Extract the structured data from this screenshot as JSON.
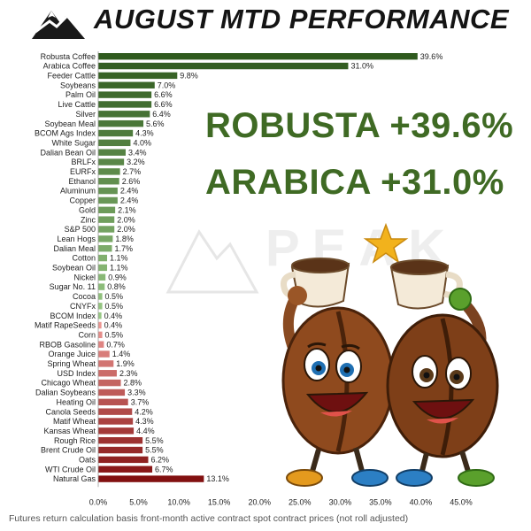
{
  "header": {
    "title": "AUGUST MTD PERFORMANCE"
  },
  "callouts": {
    "line1": "ROBUSTA +39.6%",
    "line2": "ARABICA +31.0%"
  },
  "watermark": {
    "text": "PEAK"
  },
  "footnote": "Futures return calculation basis front-month active contract spot contract prices (not roll adjusted)",
  "colors": {
    "positive_dark": "#2f5a1e",
    "positive_light": "#8fc27a",
    "negative_light": "#e98e8a",
    "negative_dark": "#8a1212",
    "callout": "#3f6a24"
  },
  "chart_data": {
    "type": "bar",
    "orientation": "horizontal",
    "title": "AUGUST MTD PERFORMANCE",
    "xlim": [
      0,
      45
    ],
    "x_ticks": [
      "0.0%",
      "5.0%",
      "10.0%",
      "15.0%",
      "20.0%",
      "25.0%",
      "30.0%",
      "35.0%",
      "40.0%",
      "45.0%"
    ],
    "grid": false,
    "bars": [
      {
        "label": "Robusta Coffee",
        "value": 39.6,
        "value_label": "39.6%",
        "sign": "positive"
      },
      {
        "label": "Arabica Coffee",
        "value": 31.0,
        "value_label": "31.0%",
        "sign": "positive"
      },
      {
        "label": "Feeder Cattle",
        "value": 9.8,
        "value_label": "9.8%",
        "sign": "positive"
      },
      {
        "label": "Soybeans",
        "value": 7.0,
        "value_label": "7.0%",
        "sign": "positive"
      },
      {
        "label": "Palm Oil",
        "value": 6.6,
        "value_label": "6.6%",
        "sign": "positive"
      },
      {
        "label": "Live Cattle",
        "value": 6.6,
        "value_label": "6.6%",
        "sign": "positive"
      },
      {
        "label": "Silver",
        "value": 6.4,
        "value_label": "6.4%",
        "sign": "positive"
      },
      {
        "label": "Soybean Meal",
        "value": 5.6,
        "value_label": "5.6%",
        "sign": "positive"
      },
      {
        "label": "BCOM Ags Index",
        "value": 4.3,
        "value_label": "4.3%",
        "sign": "positive"
      },
      {
        "label": "White Sugar",
        "value": 4.0,
        "value_label": "4.0%",
        "sign": "positive"
      },
      {
        "label": "Dalian Bean Oil",
        "value": 3.4,
        "value_label": "3.4%",
        "sign": "positive"
      },
      {
        "label": "BRLFx",
        "value": 3.2,
        "value_label": "3.2%",
        "sign": "positive"
      },
      {
        "label": "EURFx",
        "value": 2.7,
        "value_label": "2.7%",
        "sign": "positive"
      },
      {
        "label": "Ethanol",
        "value": 2.6,
        "value_label": "2.6%",
        "sign": "positive"
      },
      {
        "label": "Aluminum",
        "value": 2.4,
        "value_label": "2.4%",
        "sign": "positive"
      },
      {
        "label": "Copper",
        "value": 2.4,
        "value_label": "2.4%",
        "sign": "positive"
      },
      {
        "label": "Gold",
        "value": 2.1,
        "value_label": "2.1%",
        "sign": "positive"
      },
      {
        "label": "Zinc",
        "value": 2.0,
        "value_label": "2.0%",
        "sign": "positive"
      },
      {
        "label": "S&P 500",
        "value": 2.0,
        "value_label": "2.0%",
        "sign": "positive"
      },
      {
        "label": "Lean Hogs",
        "value": 1.8,
        "value_label": "1.8%",
        "sign": "positive"
      },
      {
        "label": "Dalian Meal",
        "value": 1.7,
        "value_label": "1.7%",
        "sign": "positive"
      },
      {
        "label": "Cotton",
        "value": 1.1,
        "value_label": "1.1%",
        "sign": "positive"
      },
      {
        "label": "Soybean Oil",
        "value": 1.1,
        "value_label": "1.1%",
        "sign": "positive"
      },
      {
        "label": "Nickel",
        "value": 0.9,
        "value_label": "0.9%",
        "sign": "positive"
      },
      {
        "label": "Sugar No. 11",
        "value": 0.8,
        "value_label": "0.8%",
        "sign": "positive"
      },
      {
        "label": "Cocoa",
        "value": 0.5,
        "value_label": "0.5%",
        "sign": "positive"
      },
      {
        "label": "CNYFx",
        "value": 0.5,
        "value_label": "0.5%",
        "sign": "positive"
      },
      {
        "label": "BCOM Index",
        "value": 0.4,
        "value_label": "0.4%",
        "sign": "positive"
      },
      {
        "label": "Matif RapeSeeds",
        "value": 0.4,
        "value_label": "0.4%",
        "sign": "negative"
      },
      {
        "label": "Corn",
        "value": 0.5,
        "value_label": "0.5%",
        "sign": "negative"
      },
      {
        "label": "RBOB Gasoline",
        "value": 0.7,
        "value_label": "0.7%",
        "sign": "negative"
      },
      {
        "label": "Orange Juice",
        "value": 1.4,
        "value_label": "1.4%",
        "sign": "negative"
      },
      {
        "label": "Spring Wheat",
        "value": 1.9,
        "value_label": "1.9%",
        "sign": "negative"
      },
      {
        "label": "USD Index",
        "value": 2.3,
        "value_label": "2.3%",
        "sign": "negative"
      },
      {
        "label": "Chicago Wheat",
        "value": 2.8,
        "value_label": "2.8%",
        "sign": "negative"
      },
      {
        "label": "Dalian Soybeans",
        "value": 3.3,
        "value_label": "3.3%",
        "sign": "negative"
      },
      {
        "label": "Heating Oil",
        "value": 3.7,
        "value_label": "3.7%",
        "sign": "negative"
      },
      {
        "label": "Canola Seeds",
        "value": 4.2,
        "value_label": "4.2%",
        "sign": "negative"
      },
      {
        "label": "Matif Wheat",
        "value": 4.3,
        "value_label": "4.3%",
        "sign": "negative"
      },
      {
        "label": "Kansas Wheat",
        "value": 4.4,
        "value_label": "4.4%",
        "sign": "negative"
      },
      {
        "label": "Rough Rice",
        "value": 5.5,
        "value_label": "5.5%",
        "sign": "negative"
      },
      {
        "label": "Brent Crude Oil",
        "value": 5.5,
        "value_label": "5.5%",
        "sign": "negative"
      },
      {
        "label": "Oats",
        "value": 6.2,
        "value_label": "6.2%",
        "sign": "negative"
      },
      {
        "label": "WTI Crude Oil",
        "value": 6.7,
        "value_label": "6.7%",
        "sign": "negative"
      },
      {
        "label": "Natural Gas",
        "value": 13.1,
        "value_label": "13.1%",
        "sign": "negative"
      }
    ]
  }
}
